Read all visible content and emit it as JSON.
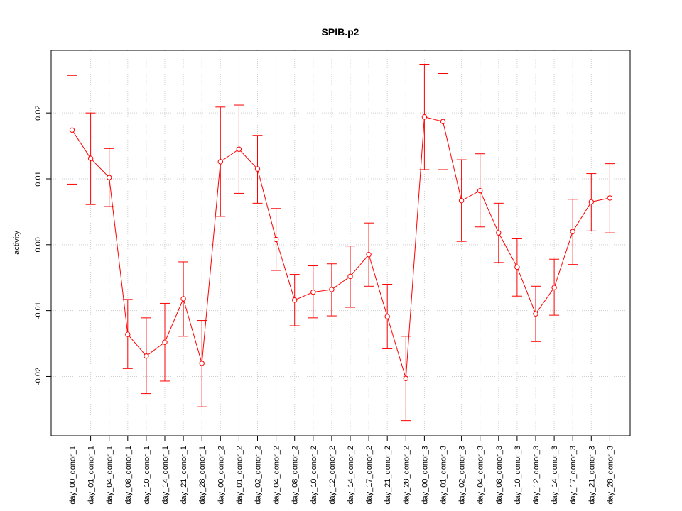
{
  "chart_data": {
    "type": "line",
    "title": "SPIB.p2",
    "xlabel": "",
    "ylabel": "activity",
    "ylim": [
      -0.029,
      0.0295
    ],
    "yticks": [
      -0.02,
      -0.01,
      0.0,
      0.01,
      0.02
    ],
    "ytick_labels": [
      "-0.02",
      "-0.01",
      "0.00",
      "0.01",
      "0.02"
    ],
    "grid": true,
    "series_color": "#ff0000",
    "categories": [
      "day_00_donor_1",
      "day_01_donor_1",
      "day_04_donor_1",
      "day_08_donor_1",
      "day_10_donor_1",
      "day_14_donor_1",
      "day_21_donor_1",
      "day_28_donor_1",
      "day_00_donor_2",
      "day_01_donor_2",
      "day_02_donor_2",
      "day_04_donor_2",
      "day_08_donor_2",
      "day_10_donor_2",
      "day_12_donor_2",
      "day_14_donor_2",
      "day_17_donor_2",
      "day_21_donor_2",
      "day_28_donor_2",
      "day_00_donor_3",
      "day_01_donor_3",
      "day_02_donor_3",
      "day_04_donor_3",
      "day_08_donor_3",
      "day_10_donor_3",
      "day_12_donor_3",
      "day_14_donor_3",
      "day_17_donor_3",
      "day_21_donor_3",
      "day_28_donor_3"
    ],
    "values": [
      0.0174,
      0.0131,
      0.0102,
      -0.0136,
      -0.0169,
      -0.0148,
      -0.0082,
      -0.018,
      0.0126,
      0.0145,
      0.0115,
      0.0008,
      -0.0084,
      -0.0072,
      -0.0068,
      -0.0048,
      -0.0015,
      -0.0109,
      -0.0203,
      0.0194,
      0.0187,
      0.0067,
      0.0082,
      0.0018,
      -0.0034,
      -0.0105,
      -0.0065,
      0.002,
      0.0065,
      0.0071
    ],
    "upper": [
      0.0257,
      0.02,
      0.0146,
      -0.0083,
      -0.0111,
      -0.0089,
      -0.0026,
      -0.0115,
      0.0209,
      0.0212,
      0.0166,
      0.0055,
      -0.0045,
      -0.0032,
      -0.0029,
      -0.0002,
      0.0033,
      -0.006,
      -0.0139,
      0.0274,
      0.026,
      0.0129,
      0.0138,
      0.0063,
      0.0009,
      -0.0063,
      -0.0022,
      0.0069,
      0.0108,
      0.0123
    ],
    "lower": [
      0.0092,
      0.0061,
      0.0058,
      -0.0188,
      -0.0226,
      -0.0207,
      -0.0139,
      -0.0246,
      0.0043,
      0.0078,
      0.0063,
      -0.0039,
      -0.0123,
      -0.0111,
      -0.0108,
      -0.0095,
      -0.0063,
      -0.0158,
      -0.0267,
      0.0114,
      0.0114,
      0.0005,
      0.0027,
      -0.0027,
      -0.0078,
      -0.0147,
      -0.0107,
      -0.003,
      0.0021,
      0.0018
    ]
  }
}
